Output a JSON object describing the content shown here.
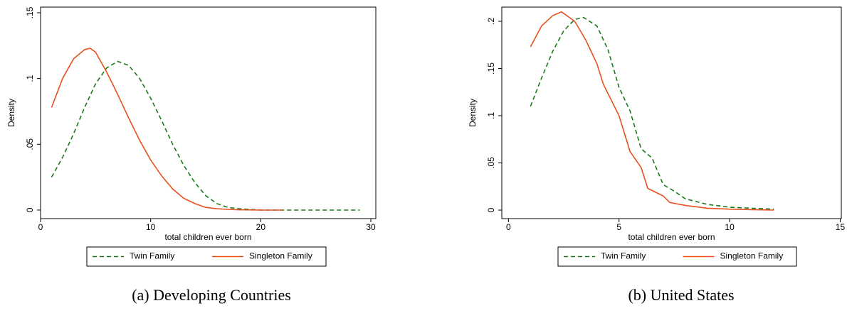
{
  "chart_data": [
    {
      "type": "line",
      "caption": "(a) Developing Countries",
      "xlabel": "total children ever born",
      "ylabel": "Density",
      "xlim": [
        0,
        30.45
      ],
      "ylim": [
        -0.0065,
        0.1543
      ],
      "xticks": [
        0,
        10,
        20,
        30
      ],
      "yticks": [
        0,
        {
          "value": 0.05,
          "label": ".05"
        },
        {
          "value": 0.1,
          "label": ".1"
        },
        {
          "value": 0.15,
          "label": ".15"
        }
      ],
      "series": [
        {
          "name": "Twin Family",
          "color": "#1a7a1a",
          "dash": true,
          "x": [
            1,
            2,
            3,
            4,
            5,
            6,
            7,
            8,
            9,
            10,
            11,
            12,
            13,
            14,
            15,
            16,
            17,
            18,
            20,
            25,
            29
          ],
          "values": [
            0.025,
            0.04,
            0.058,
            0.078,
            0.096,
            0.108,
            0.113,
            0.11,
            0.1,
            0.085,
            0.068,
            0.05,
            0.034,
            0.021,
            0.011,
            0.005,
            0.002,
            0.001,
            0,
            0,
            0
          ]
        },
        {
          "name": "Singleton Family",
          "color": "#e8501e",
          "dash": false,
          "x": [
            1,
            2,
            3,
            4,
            4.5,
            5,
            6,
            7,
            8,
            9,
            10,
            11,
            12,
            13,
            14,
            15,
            16,
            17,
            18,
            20,
            22
          ],
          "values": [
            0.078,
            0.1,
            0.115,
            0.122,
            0.123,
            0.12,
            0.105,
            0.088,
            0.07,
            0.053,
            0.038,
            0.026,
            0.016,
            0.009,
            0.005,
            0.002,
            0.001,
            0.0005,
            0.0002,
            0,
            0
          ]
        }
      ]
    },
    {
      "type": "line",
      "caption": "(b) United States",
      "xlabel": "total children ever born",
      "ylabel": "Density",
      "xlim": [
        -0.3,
        15.05
      ],
      "ylim": [
        -0.009,
        0.215
      ],
      "xticks": [
        0,
        5,
        10,
        15
      ],
      "yticks": [
        0,
        {
          "value": 0.05,
          "label": ".05"
        },
        {
          "value": 0.1,
          "label": ".1"
        },
        {
          "value": 0.15,
          "label": ".15"
        },
        {
          "value": 0.2,
          "label": ".2"
        }
      ],
      "series": [
        {
          "name": "Twin Family",
          "color": "#1a7a1a",
          "dash": true,
          "x": [
            1,
            1.5,
            2,
            2.5,
            3,
            3.4,
            4,
            4.5,
            5,
            5.5,
            6,
            6.5,
            7,
            7.5,
            8,
            9,
            10,
            11,
            12
          ],
          "values": [
            0.11,
            0.14,
            0.168,
            0.19,
            0.202,
            0.204,
            0.195,
            0.17,
            0.13,
            0.105,
            0.065,
            0.055,
            0.027,
            0.02,
            0.012,
            0.006,
            0.003,
            0.002,
            0.001
          ]
        },
        {
          "name": "Singleton Family",
          "color": "#e8501e",
          "dash": false,
          "x": [
            1,
            1.5,
            2,
            2.4,
            3,
            3.5,
            4,
            4.3,
            5,
            5.5,
            6,
            6.3,
            7,
            7.3,
            8,
            9,
            10,
            11,
            12
          ],
          "values": [
            0.173,
            0.195,
            0.206,
            0.21,
            0.2,
            0.18,
            0.155,
            0.133,
            0.1,
            0.062,
            0.045,
            0.023,
            0.015,
            0.008,
            0.005,
            0.002,
            0.001,
            0.0005,
            0
          ]
        }
      ]
    }
  ]
}
